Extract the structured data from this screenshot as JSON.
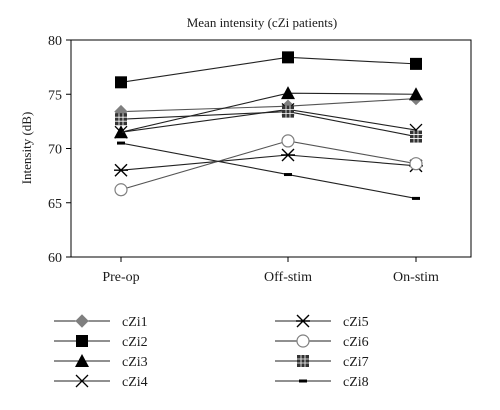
{
  "chart_data": {
    "type": "line",
    "title": "Mean intensity (cZi patients)",
    "xlabel": "",
    "ylabel": "Intensity (dB)",
    "categories": [
      "Pre-op",
      "Off-stim",
      "On-stim"
    ],
    "ylim": [
      60,
      80
    ],
    "yticks": [
      60,
      65,
      70,
      75,
      80
    ],
    "grid": false,
    "legend_position": "bottom",
    "series": [
      {
        "name": "cZi1",
        "values": [
          73.4,
          73.9,
          74.6
        ],
        "marker": "diamond",
        "color": "#7f7f7f"
      },
      {
        "name": "cZi2",
        "values": [
          76.1,
          78.4,
          77.8
        ],
        "marker": "square",
        "color": "#000000"
      },
      {
        "name": "cZi3",
        "values": [
          71.5,
          75.1,
          75.0
        ],
        "marker": "triangle",
        "color": "#000000"
      },
      {
        "name": "cZi4",
        "values": [
          71.5,
          73.6,
          71.7
        ],
        "marker": "x",
        "color": "#000000"
      },
      {
        "name": "cZi5",
        "values": [
          68.0,
          69.4,
          68.4
        ],
        "marker": "star",
        "color": "#000000"
      },
      {
        "name": "cZi6",
        "values": [
          66.2,
          70.7,
          68.6
        ],
        "marker": "circle",
        "color": "#7f7f7f"
      },
      {
        "name": "cZi7",
        "values": [
          72.7,
          73.4,
          71.1
        ],
        "marker": "hash-square",
        "color": "#333333"
      },
      {
        "name": "cZi8",
        "values": [
          70.5,
          67.6,
          65.4
        ],
        "marker": "dash",
        "color": "#000000"
      }
    ]
  }
}
